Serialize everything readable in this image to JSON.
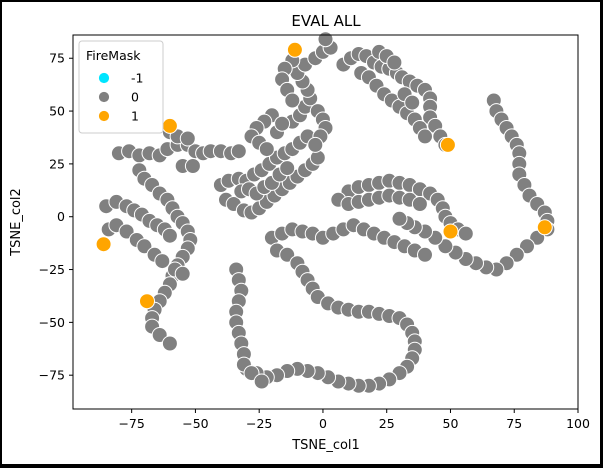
{
  "chart_data": {
    "type": "scatter",
    "title": "EVAL ALL",
    "xlabel": "TSNE_col1",
    "ylabel": "TSNE_col2",
    "xlim": [
      -98,
      100
    ],
    "ylim": [
      -91,
      86
    ],
    "xticks": [
      -75,
      -50,
      -25,
      0,
      25,
      50,
      75,
      100
    ],
    "yticks": [
      75,
      50,
      25,
      0,
      -25,
      -50,
      -75
    ],
    "xtick_labels": [
      "−75",
      "−50",
      "−25",
      "0",
      "25",
      "50",
      "75",
      "100"
    ],
    "ytick_labels": [
      "75",
      "50",
      "25",
      "0",
      "−25",
      "−50",
      "−75"
    ],
    "grid": false,
    "legend": {
      "title": "FireMask",
      "placement": "upper-left",
      "entries": [
        {
          "label": "-1",
          "color": "#00e5ff"
        },
        {
          "label": "0",
          "color": "#808080"
        },
        {
          "label": "1",
          "color": "#ffa500"
        }
      ]
    },
    "series": [
      {
        "name": "0",
        "color": "#808080",
        "points": [
          [
            -80,
            30
          ],
          [
            -76,
            31
          ],
          [
            -72,
            29
          ],
          [
            -68,
            30
          ],
          [
            -64,
            29
          ],
          [
            -61,
            32
          ],
          [
            -57,
            34
          ],
          [
            -53,
            34
          ],
          [
            -50,
            31
          ],
          [
            -47,
            30
          ],
          [
            -44,
            31
          ],
          [
            -40,
            31
          ],
          [
            -36,
            30
          ],
          [
            -33,
            31
          ],
          [
            -60,
            40
          ],
          [
            -57,
            38
          ],
          [
            -53,
            37
          ],
          [
            -55,
            24
          ],
          [
            -51,
            24
          ],
          [
            -72,
            22
          ],
          [
            -70,
            18
          ],
          [
            -67,
            15
          ],
          [
            -64,
            11
          ],
          [
            -61,
            8
          ],
          [
            -59,
            4
          ],
          [
            -57,
            0
          ],
          [
            -55,
            -3
          ],
          [
            -53,
            -7
          ],
          [
            -52,
            -11
          ],
          [
            -53,
            -15
          ],
          [
            -55,
            -19
          ],
          [
            -57,
            -23
          ],
          [
            -59,
            -28
          ],
          [
            -60,
            -32
          ],
          [
            -62,
            -36
          ],
          [
            -64,
            -40
          ],
          [
            -66,
            -44
          ],
          [
            -67,
            -48
          ],
          [
            -67,
            -52
          ],
          [
            -64,
            -56
          ],
          [
            -60,
            -60
          ],
          [
            -85,
            5
          ],
          [
            -81,
            7
          ],
          [
            -77,
            5
          ],
          [
            -74,
            3
          ],
          [
            -71,
            1
          ],
          [
            -68,
            -2
          ],
          [
            -65,
            -4
          ],
          [
            -62,
            -6
          ],
          [
            -60,
            -9
          ],
          [
            -84,
            -6
          ],
          [
            -81,
            -4
          ],
          [
            -77,
            -7
          ],
          [
            -73,
            -11
          ],
          [
            -70,
            -14
          ],
          [
            -66,
            -18
          ],
          [
            -63,
            -21
          ],
          [
            -58,
            -25
          ],
          [
            -55,
            -27
          ],
          [
            -40,
            15
          ],
          [
            -37,
            17
          ],
          [
            -33,
            18
          ],
          [
            -30,
            17
          ],
          [
            -27,
            20
          ],
          [
            -24,
            22
          ],
          [
            -21,
            25
          ],
          [
            -18,
            28
          ],
          [
            -15,
            30
          ],
          [
            -12,
            32
          ],
          [
            -9,
            35
          ],
          [
            -6,
            38
          ],
          [
            -38,
            8
          ],
          [
            -35,
            6
          ],
          [
            -31,
            3
          ],
          [
            -28,
            2
          ],
          [
            -25,
            4
          ],
          [
            -22,
            7
          ],
          [
            -19,
            10
          ],
          [
            -16,
            13
          ],
          [
            -13,
            16
          ],
          [
            -10,
            19
          ],
          [
            -7,
            22
          ],
          [
            -4,
            25
          ],
          [
            -2,
            28
          ],
          [
            -32,
            12
          ],
          [
            -29,
            13
          ],
          [
            -26,
            11
          ],
          [
            -23,
            14
          ],
          [
            -20,
            16
          ],
          [
            -17,
            20
          ],
          [
            -14,
            23
          ],
          [
            -12,
            45
          ],
          [
            -9,
            48
          ],
          [
            -7,
            52
          ],
          [
            -5,
            56
          ],
          [
            -6,
            60
          ],
          [
            -8,
            64
          ],
          [
            -10,
            68
          ],
          [
            -7,
            72
          ],
          [
            -3,
            75
          ],
          [
            0,
            78
          ],
          [
            3,
            80
          ],
          [
            1,
            84
          ],
          [
            -12,
            74
          ],
          [
            -15,
            70
          ],
          [
            -16,
            65
          ],
          [
            -14,
            60
          ],
          [
            -12,
            55
          ],
          [
            -2,
            50
          ],
          [
            0,
            46
          ],
          [
            1,
            42
          ],
          [
            -1,
            38
          ],
          [
            -3,
            34
          ],
          [
            -20,
            48
          ],
          [
            -23,
            45
          ],
          [
            -26,
            42
          ],
          [
            -28,
            38
          ],
          [
            -25,
            35
          ],
          [
            -22,
            32
          ],
          [
            -18,
            40
          ],
          [
            -16,
            44
          ],
          [
            8,
            72
          ],
          [
            11,
            75
          ],
          [
            14,
            77
          ],
          [
            17,
            76
          ],
          [
            20,
            73
          ],
          [
            23,
            71
          ],
          [
            26,
            70
          ],
          [
            29,
            68
          ],
          [
            31,
            66
          ],
          [
            34,
            64
          ],
          [
            37,
            62
          ],
          [
            40,
            60
          ],
          [
            42,
            56
          ],
          [
            42,
            52
          ],
          [
            42,
            47
          ],
          [
            44,
            43
          ],
          [
            46,
            38
          ],
          [
            48,
            34
          ],
          [
            15,
            68
          ],
          [
            18,
            66
          ],
          [
            21,
            62
          ],
          [
            24,
            58
          ],
          [
            27,
            55
          ],
          [
            30,
            52
          ],
          [
            33,
            49
          ],
          [
            36,
            46
          ],
          [
            38,
            42
          ],
          [
            40,
            38
          ],
          [
            22,
            78
          ],
          [
            25,
            76
          ],
          [
            28,
            73
          ],
          [
            32,
            58
          ],
          [
            35,
            54
          ],
          [
            67,
            55
          ],
          [
            68,
            50
          ],
          [
            70,
            46
          ],
          [
            72,
            42
          ],
          [
            74,
            38
          ],
          [
            76,
            34
          ],
          [
            77,
            30
          ],
          [
            77,
            25
          ],
          [
            77,
            20
          ],
          [
            79,
            15
          ],
          [
            81,
            10
          ],
          [
            84,
            6
          ],
          [
            87,
            2
          ],
          [
            88,
            -2
          ],
          [
            88,
            -6
          ],
          [
            84,
            -10
          ],
          [
            80,
            -14
          ],
          [
            76,
            -18
          ],
          [
            72,
            -22
          ],
          [
            68,
            -25
          ],
          [
            64,
            -24
          ],
          [
            60,
            -22
          ],
          [
            56,
            -20
          ],
          [
            52,
            -17
          ],
          [
            48,
            -14
          ],
          [
            44,
            -10
          ],
          [
            40,
            -7
          ],
          [
            36,
            -5
          ],
          [
            33,
            -3
          ],
          [
            30,
            -1
          ],
          [
            10,
            12
          ],
          [
            14,
            14
          ],
          [
            18,
            15
          ],
          [
            22,
            16
          ],
          [
            26,
            17
          ],
          [
            30,
            16
          ],
          [
            34,
            15
          ],
          [
            38,
            13
          ],
          [
            42,
            11
          ],
          [
            45,
            8
          ],
          [
            47,
            4
          ],
          [
            48,
            0
          ],
          [
            50,
            -3
          ],
          [
            53,
            -6
          ],
          [
            56,
            -8
          ],
          [
            6,
            8
          ],
          [
            10,
            6
          ],
          [
            14,
            7
          ],
          [
            18,
            8
          ],
          [
            22,
            9
          ],
          [
            26,
            10
          ],
          [
            30,
            9
          ],
          [
            34,
            8
          ],
          [
            38,
            6
          ],
          [
            -20,
            -10
          ],
          [
            -16,
            -8
          ],
          [
            -12,
            -6
          ],
          [
            -8,
            -7
          ],
          [
            -4,
            -8
          ],
          [
            0,
            -10
          ],
          [
            4,
            -8
          ],
          [
            8,
            -6
          ],
          [
            12,
            -4
          ],
          [
            16,
            -6
          ],
          [
            20,
            -8
          ],
          [
            24,
            -10
          ],
          [
            28,
            -12
          ],
          [
            32,
            -14
          ],
          [
            36,
            -16
          ],
          [
            40,
            -18
          ],
          [
            -18,
            -16
          ],
          [
            -14,
            -18
          ],
          [
            -10,
            -22
          ],
          [
            -8,
            -26
          ],
          [
            -6,
            -30
          ],
          [
            -4,
            -34
          ],
          [
            -2,
            -38
          ],
          [
            2,
            -41
          ],
          [
            6,
            -43
          ],
          [
            10,
            -44
          ],
          [
            14,
            -45
          ],
          [
            18,
            -45
          ],
          [
            22,
            -46
          ],
          [
            26,
            -47
          ],
          [
            30,
            -48
          ],
          [
            33,
            -51
          ],
          [
            35,
            -55
          ],
          [
            36,
            -59
          ],
          [
            36,
            -63
          ],
          [
            35,
            -67
          ],
          [
            33,
            -71
          ],
          [
            30,
            -74
          ],
          [
            26,
            -77
          ],
          [
            22,
            -79
          ],
          [
            18,
            -80
          ],
          [
            14,
            -80
          ],
          [
            10,
            -79
          ],
          [
            6,
            -78
          ],
          [
            2,
            -76
          ],
          [
            -2,
            -74
          ],
          [
            -6,
            -73
          ],
          [
            -10,
            -72
          ],
          [
            -14,
            -73
          ],
          [
            -18,
            -75
          ],
          [
            -22,
            -76
          ],
          [
            -26,
            -74
          ],
          [
            -30,
            -72
          ],
          [
            -34,
            -25
          ],
          [
            -33,
            -30
          ],
          [
            -32,
            -35
          ],
          [
            -33,
            -40
          ],
          [
            -34,
            -45
          ],
          [
            -34,
            -50
          ],
          [
            -33,
            -55
          ],
          [
            -32,
            -60
          ],
          [
            -31,
            -65
          ],
          [
            -31,
            -70
          ],
          [
            -28,
            -74
          ],
          [
            -24,
            -78
          ]
        ]
      },
      {
        "name": "1",
        "color": "#ffa500",
        "points": [
          [
            -86,
            -13
          ],
          [
            -69,
            -40
          ],
          [
            -60,
            43
          ],
          [
            -11,
            79
          ],
          [
            49,
            34
          ],
          [
            50,
            -7
          ],
          [
            87,
            -5
          ]
        ]
      },
      {
        "name": "-1",
        "color": "#00e5ff",
        "points": []
      }
    ]
  }
}
